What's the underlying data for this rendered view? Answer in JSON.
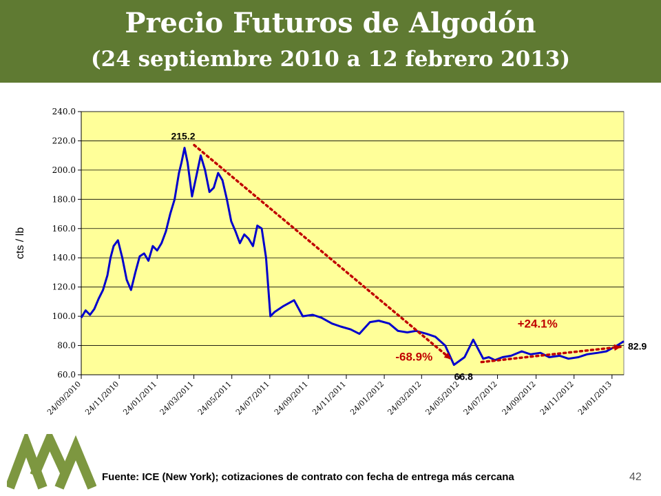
{
  "slide": {
    "title": "Precio Futuros de Algodón",
    "subtitle": "(24 septiembre 2010 a 12 febrero 2013)",
    "source": "Fuente: ICE (New York); cotizaciones de contrato con fecha de entrega más cercana",
    "page_number": "42"
  },
  "colors": {
    "header_bg": "#5f7a32",
    "plot_bg": "#ffff99",
    "line": "#0000cc",
    "annotation": "#c00000"
  },
  "chart_data": {
    "type": "line",
    "title": "",
    "xlabel": "",
    "ylabel": "cts / lb",
    "ylim": [
      60,
      240
    ],
    "yticks": [
      60,
      80,
      100,
      120,
      140,
      160,
      180,
      200,
      220,
      240
    ],
    "ytick_labels": [
      "60.0",
      "80.0",
      "100.0",
      "120.0",
      "140.0",
      "160.0",
      "180.0",
      "200.0",
      "220.0",
      "240.0"
    ],
    "xlim": [
      "2010-09-24",
      "2013-02-12"
    ],
    "xticks": [
      "2010-09-24",
      "2010-11-24",
      "2011-01-24",
      "2011-03-24",
      "2011-05-24",
      "2011-07-24",
      "2011-09-24",
      "2011-11-24",
      "2012-01-24",
      "2012-03-24",
      "2012-05-24",
      "2012-07-24",
      "2012-09-24",
      "2012-11-24",
      "2013-01-24"
    ],
    "xtick_labels": [
      "24/09/2010",
      "24/11/2010",
      "24/01/2011",
      "24/03/2011",
      "24/05/2011",
      "24/07/2011",
      "24/09/2011",
      "24/11/2011",
      "24/01/2012",
      "24/03/2012",
      "24/05/2012",
      "24/07/2012",
      "24/09/2012",
      "24/11/2012",
      "24/01/2013"
    ],
    "grid": true,
    "series": [
      {
        "name": "",
        "x": [
          "2010-09-24",
          "2010-10-01",
          "2010-10-08",
          "2010-10-15",
          "2010-10-22",
          "2010-10-29",
          "2010-11-05",
          "2010-11-10",
          "2010-11-15",
          "2010-11-22",
          "2010-11-29",
          "2010-12-06",
          "2010-12-13",
          "2010-12-20",
          "2010-12-27",
          "2011-01-03",
          "2011-01-10",
          "2011-01-17",
          "2011-01-24",
          "2011-01-31",
          "2011-02-07",
          "2011-02-14",
          "2011-02-21",
          "2011-02-28",
          "2011-03-04",
          "2011-03-09",
          "2011-03-14",
          "2011-03-21",
          "2011-03-28",
          "2011-04-04",
          "2011-04-11",
          "2011-04-18",
          "2011-04-25",
          "2011-05-02",
          "2011-05-09",
          "2011-05-16",
          "2011-05-23",
          "2011-05-30",
          "2011-06-06",
          "2011-06-13",
          "2011-06-20",
          "2011-06-27",
          "2011-07-04",
          "2011-07-11",
          "2011-07-18",
          "2011-07-25",
          "2011-08-01",
          "2011-08-15",
          "2011-09-01",
          "2011-09-15",
          "2011-10-01",
          "2011-10-15",
          "2011-11-01",
          "2011-11-15",
          "2011-12-01",
          "2011-12-15",
          "2012-01-01",
          "2012-01-15",
          "2012-02-01",
          "2012-02-15",
          "2012-03-01",
          "2012-03-15",
          "2012-04-01",
          "2012-04-15",
          "2012-05-01",
          "2012-05-15",
          "2012-06-01",
          "2012-06-15",
          "2012-07-01",
          "2012-07-10",
          "2012-07-20",
          "2012-08-01",
          "2012-08-15",
          "2012-09-01",
          "2012-09-15",
          "2012-10-01",
          "2012-10-15",
          "2012-11-01",
          "2012-11-15",
          "2012-12-01",
          "2012-12-15",
          "2013-01-01",
          "2013-01-15",
          "2013-02-01",
          "2013-02-12"
        ],
        "values": [
          99,
          104,
          101,
          105,
          112,
          118,
          128,
          140,
          148,
          152,
          140,
          125,
          118,
          130,
          141,
          143,
          138,
          148,
          145,
          150,
          158,
          170,
          180,
          198,
          205,
          215.2,
          205,
          182,
          196,
          210,
          200,
          185,
          188,
          198,
          193,
          180,
          165,
          158,
          150,
          156,
          153,
          148,
          162,
          160,
          140,
          100,
          103,
          107,
          111,
          100,
          101,
          99,
          95,
          93,
          91,
          88,
          96,
          97,
          95,
          90,
          89,
          90,
          88,
          86,
          80,
          66.8,
          72,
          84,
          71,
          72,
          70,
          72,
          73,
          76,
          74,
          75,
          72,
          73,
          71,
          72,
          74,
          75,
          76,
          80,
          82.9
        ]
      }
    ],
    "annotations": [
      {
        "label": "215.2",
        "x": "2011-03-09",
        "y": 215.2
      },
      {
        "label": "66.8",
        "x": "2012-05-15",
        "y": 66.8
      },
      {
        "label": "82.9",
        "x": "2013-02-12",
        "y": 82.9
      },
      {
        "label": "-68.9%",
        "from": "2011-03-09",
        "to": "2012-05-15"
      },
      {
        "label": "+24.1%",
        "from": "2012-05-15",
        "to": "2013-02-12"
      }
    ]
  }
}
